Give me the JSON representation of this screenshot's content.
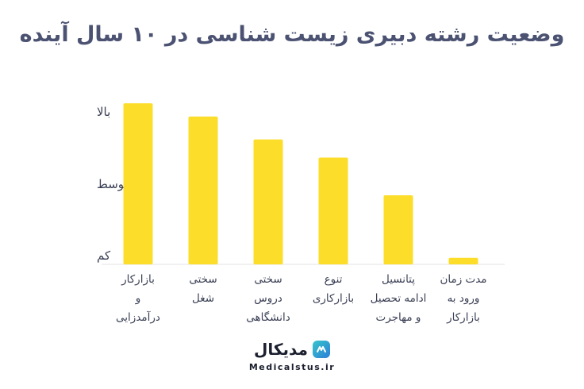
{
  "chart_data": {
    "type": "bar",
    "title": "وضعیت رشته دبیری زیست شناسی در ۱۰ سال آینده",
    "y_tick_labels": [
      "بالا",
      "متوسط",
      "کم"
    ],
    "categories": [
      [
        "بازارکار",
        "و",
        "درآمدزایی"
      ],
      [
        "سختی",
        "شغل"
      ],
      [
        "سختی",
        "دروس",
        "دانشگاهی"
      ],
      [
        "تنوع",
        "بازارکاری"
      ],
      [
        "پتانسیل",
        "ادامه تحصیل",
        "و مهاجرت"
      ],
      [
        "مدت زمان",
        "ورود به",
        "بازارکار"
      ]
    ],
    "values": [
      0.98,
      0.9,
      0.76,
      0.65,
      0.42,
      0.04
    ],
    "ylim": [
      0,
      1
    ],
    "bar_color": "#fcdd2a",
    "grid": false
  },
  "brand": {
    "name": "مدیکال",
    "url": "Medicalstus.ir"
  }
}
